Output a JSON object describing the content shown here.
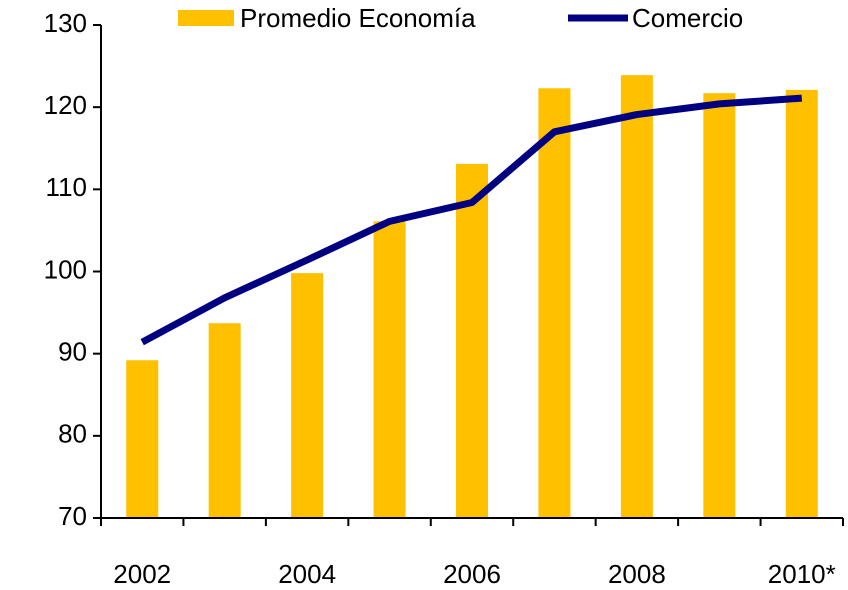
{
  "chart_data": {
    "type": "bar-line",
    "categories": [
      "2002",
      null,
      "2004",
      null,
      "2006",
      null,
      "2008",
      null,
      "2010*"
    ],
    "series": [
      {
        "name": "Promedio Economía",
        "type": "bar",
        "color": "#ffc000",
        "values": [
          89.2,
          93.7,
          99.8,
          106.1,
          113.1,
          122.3,
          123.9,
          121.7,
          122.1
        ]
      },
      {
        "name": "Comercio",
        "type": "line",
        "color": "#000080",
        "values": [
          91.4,
          96.8,
          101.4,
          106.1,
          108.4,
          117.0,
          119.1,
          120.4,
          121.1
        ]
      }
    ],
    "ylim": [
      70,
      130
    ],
    "yticks": [
      70,
      80,
      90,
      100,
      110,
      120,
      130
    ],
    "grid": false,
    "legend": "top"
  }
}
